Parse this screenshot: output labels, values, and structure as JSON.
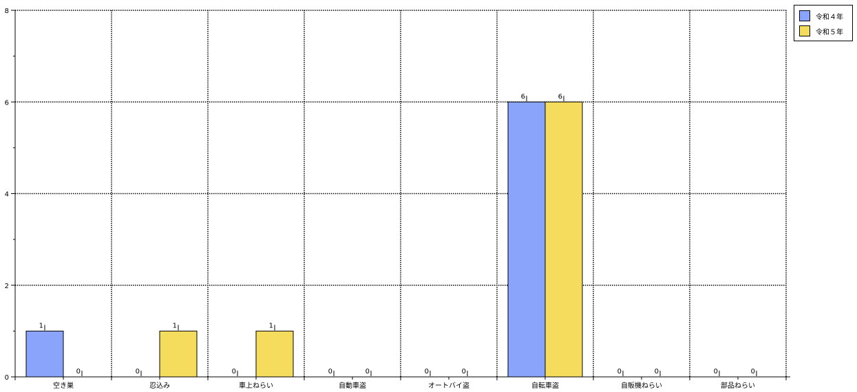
{
  "chart_data": {
    "type": "bar",
    "categories": [
      "空き巣",
      "忍込み",
      "車上ねらい",
      "自動車盗",
      "オートバイ盗",
      "自転車盗",
      "自販機ねらい",
      "部品ねらい"
    ],
    "series": [
      {
        "name": "令和４年",
        "color": "#8aa3fb",
        "values": [
          1,
          0,
          0,
          0,
          0,
          6,
          0,
          0
        ]
      },
      {
        "name": "令和５年",
        "color": "#f5dc5c",
        "values": [
          0,
          1,
          1,
          0,
          0,
          6,
          0,
          0
        ]
      }
    ],
    "ylim": [
      0,
      8
    ],
    "yticks": [
      0,
      2,
      4,
      6,
      8
    ],
    "grid": true,
    "legend_position": "top-right",
    "show_data_labels": true
  }
}
